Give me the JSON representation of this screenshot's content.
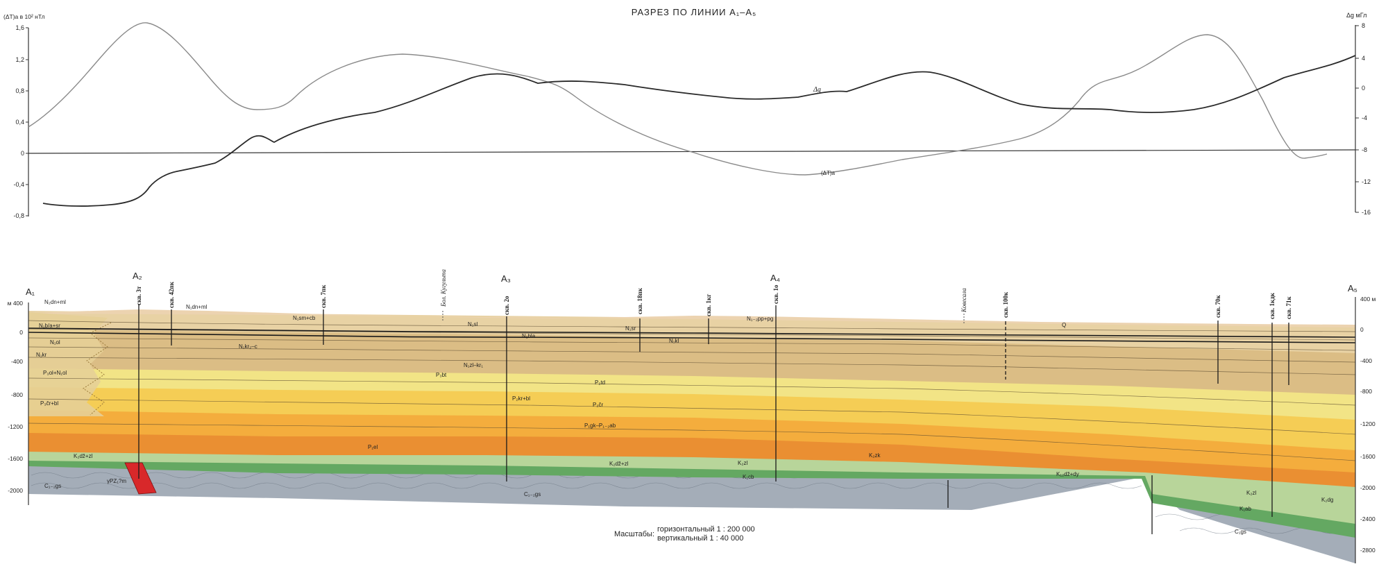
{
  "title": "РАЗРЕЗ ПО ЛИНИИ A₁–A₅",
  "top_panel": {
    "left_axis_label": "(ΔT)а в 10² нТл",
    "right_axis_label": "Δg мГл",
    "left_ticks": [
      "1,6",
      "1,2",
      "0,8",
      "0,4",
      "0",
      "-0,4",
      "-0,8"
    ],
    "right_ticks": [
      "8",
      "4",
      "0",
      "-4",
      "-8",
      "-12",
      "-16"
    ],
    "curve_dg_label": "Δg",
    "curve_dt_label": "(ΔT)а",
    "colors": {
      "dt": "#8a8a8a",
      "dg": "#2a2a2a"
    }
  },
  "section": {
    "left_depth_ticks": [
      "м 400",
      "0",
      "-400",
      "-800",
      "-1200",
      "-1600",
      "-2000"
    ],
    "right_depth_ticks": [
      "400 м",
      "0",
      "-400",
      "-800",
      "-1200",
      "-1600",
      "-2000",
      "-2400",
      "-2800"
    ],
    "points": [
      "A₁",
      "A₂",
      "A₃",
      "A₄",
      "A₅"
    ],
    "wells": [
      "скв. 3т",
      "скв. 42пк",
      "скв. 7пк",
      "скв. 2о",
      "скв. 18пк",
      "скв. 1кг",
      "скв. 1о",
      "скв. 100к",
      "скв. 70к",
      "скв. 1кдк",
      "скв. 71к"
    ],
    "places": [
      "Бол. Кугульта",
      "Ковесала"
    ],
    "unit_labels": [
      "N₂dn+ml",
      "N₁b/a+sr",
      "N₁ol",
      "N₁kr",
      "P₃ol+N₁ol",
      "P₃čr+bl",
      "K₂dž+zl",
      "C₁₋₂gs",
      "γPZ₁?m",
      "N₁dn+ml",
      "N₁sm+cb",
      "N₁kr₂–c",
      "N₁sl",
      "N₁bla",
      "N₁sr",
      "N₁zl–kr₁",
      "N₁kl",
      "N₁₋₂pp+pg",
      "P₃bt",
      "P₂td",
      "P₂kr+bl",
      "P₂čr",
      "P₁gk–P₁₋₂ab",
      "P₁el",
      "K₂dž+zl",
      "K₂zl",
      "K₁cb",
      "K₂zk",
      "K₁₂dž+dy",
      "Q",
      "K₂zl",
      "K₁ab",
      "K₂dg",
      "C₁gs",
      "C₁₋₂gs"
    ],
    "colors": {
      "quaternary": "#ecd3b0",
      "neogene_upper": "#e8d2a4",
      "neogene": "#dbbd85",
      "paleogene_light": "#f2e486",
      "paleogene_yellow": "#f5cd55",
      "paleogene_orange": "#f4ad3d",
      "paleocene": "#ea8f32",
      "cretaceous_upper": "#b8d59a",
      "cretaceous_lower": "#64a862",
      "basement": "#a4adb8",
      "intrusion": "#d8282a"
    }
  },
  "scale": {
    "label": "Масштабы:",
    "horizontal": "горизонтальный 1 : 200 000",
    "vertical": "вертикальный 1 : 40 000"
  }
}
